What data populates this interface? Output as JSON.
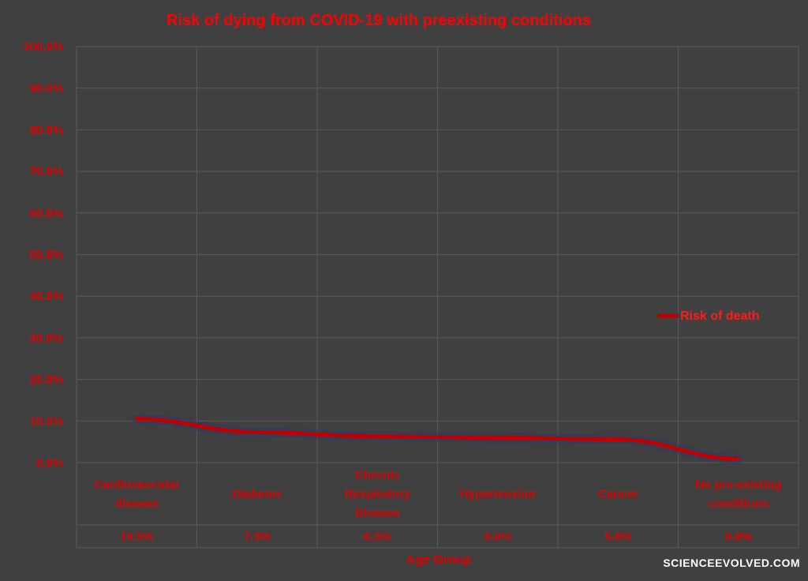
{
  "chart_data": {
    "type": "line",
    "title": "Risk of dying from COVID-19 with preexisting conditions",
    "xlabel": "Age Group",
    "ylabel": "",
    "categories": [
      [
        "Cardiovascular",
        "disease"
      ],
      [
        "Diabetes"
      ],
      [
        "Chronic",
        "Respiratory",
        "Disease"
      ],
      [
        "Hypertension"
      ],
      [
        "Cancer"
      ],
      [
        "No pre-existing",
        "conditions"
      ]
    ],
    "series": [
      {
        "name": "Risk of death",
        "values": [
          10.5,
          7.3,
          6.3,
          6.0,
          5.6,
          0.9
        ],
        "value_labels": [
          "10.5%",
          "7.3%",
          "6.3%",
          "6.0%",
          "5.6%",
          "0.9%"
        ],
        "color": "#c00000"
      }
    ],
    "ylim": [
      0,
      100
    ],
    "yticks": [
      "0.0%",
      "10.0%",
      "20.0%",
      "30.0%",
      "40.0%",
      "50.0%",
      "60.0%",
      "70.0%",
      "80.0%",
      "90.0%",
      "100.0%"
    ],
    "grid": true,
    "legend_position": "right",
    "data_table": true
  },
  "colors": {
    "background": "#404040",
    "grid": "#5a5a5a",
    "text": "#e00000",
    "line": "#c00000"
  },
  "watermark": "SCIENCEEVOLVED.COM"
}
